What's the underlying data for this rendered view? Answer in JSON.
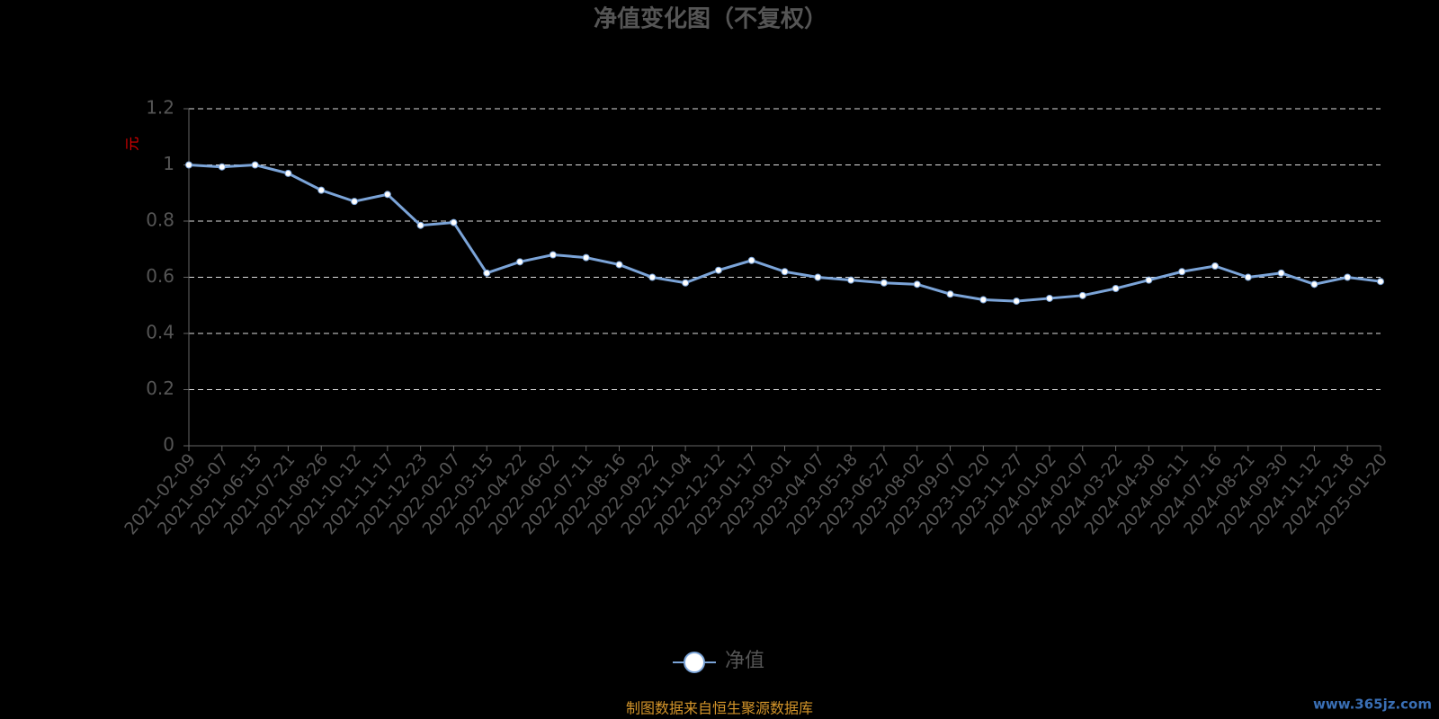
{
  "chart_data": {
    "type": "line",
    "title": "净值变化图（不复权）",
    "y_label": "元",
    "categories": [
      "2021-02-09",
      "2021-05-07",
      "2021-06-15",
      "2021-07-21",
      "2021-08-26",
      "2021-10-12",
      "2021-11-17",
      "2021-12-23",
      "2022-02-07",
      "2022-03-15",
      "2022-04-22",
      "2022-06-02",
      "2022-07-11",
      "2022-08-16",
      "2022-09-22",
      "2022-11-04",
      "2022-12-12",
      "2023-01-17",
      "2023-03-01",
      "2023-04-07",
      "2023-05-18",
      "2023-06-27",
      "2023-08-02",
      "2023-09-07",
      "2023-10-20",
      "2023-11-27",
      "2024-01-02",
      "2024-02-07",
      "2024-03-22",
      "2024-04-30",
      "2024-06-11",
      "2024-07-16",
      "2024-08-21",
      "2024-09-30",
      "2024-11-12",
      "2024-12-18",
      "2025-01-20"
    ],
    "series": [
      {
        "name": "净值",
        "color": "#7ba4d8",
        "values": [
          1.0,
          0.993,
          1.0,
          0.97,
          0.91,
          0.87,
          0.895,
          0.785,
          0.795,
          0.615,
          0.655,
          0.68,
          0.67,
          0.645,
          0.6,
          0.58,
          0.625,
          0.66,
          0.62,
          0.6,
          0.59,
          0.58,
          0.575,
          0.54,
          0.52,
          0.515,
          0.525,
          0.535,
          0.56,
          0.59,
          0.62,
          0.64,
          0.6,
          0.615,
          0.575,
          0.6,
          0.585
        ]
      }
    ],
    "ylim": [
      0,
      1.2
    ],
    "yticks": [
      0,
      0.2,
      0.4,
      0.6,
      0.8,
      1,
      1.2
    ],
    "grid": true,
    "source": "制图数据来自恒生聚源数据库",
    "watermark": "www.365jz.com"
  }
}
